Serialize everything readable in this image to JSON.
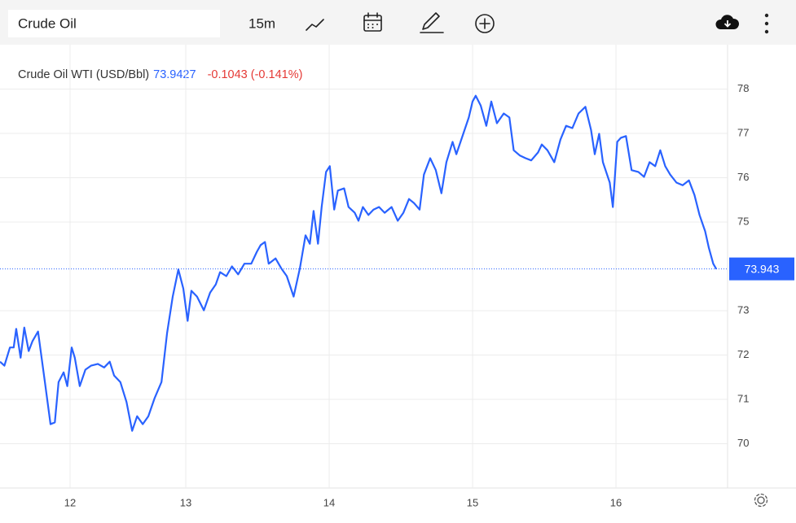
{
  "toolbar": {
    "symbol": "Crude Oil",
    "interval": "15m"
  },
  "chart_data": {
    "type": "line",
    "title": "Crude Oil WTI (USD/Bbl)",
    "price": "73.9427",
    "change": "-0.1043 (-0.141%)",
    "last_price": 73.943,
    "xlim": [
      0,
      116.7
    ],
    "ylim": [
      69.0,
      79.0
    ],
    "xticks": [
      {
        "value": 11.24,
        "label": "12"
      },
      {
        "value": 29.8,
        "label": "13"
      },
      {
        "value": 52.8,
        "label": "14"
      },
      {
        "value": 75.8,
        "label": "15"
      },
      {
        "value": 98.8,
        "label": "16"
      }
    ],
    "yticks": [
      70,
      71,
      72,
      73,
      75,
      76,
      77,
      78
    ],
    "grid": true,
    "series": [
      {
        "color": "#2962ff",
        "x": [
          0,
          0.7,
          1.6,
          2.2,
          2.6,
          3.3,
          3.9,
          4.6,
          5.2,
          6.1,
          7.2,
          8.1,
          8.8,
          9.4,
          10.2,
          10.8,
          11.5,
          12.0,
          12.8,
          13.7,
          14.6,
          15.7,
          16.7,
          17.6,
          18.3,
          19.3,
          20.3,
          21.2,
          22.0,
          22.9,
          23.8,
          24.8,
          25.9,
          26.8,
          27.7,
          28.6,
          29.4,
          30.1,
          30.7,
          31.6,
          32.7,
          33.7,
          34.6,
          35.3,
          36.3,
          37.2,
          38.2,
          39.2,
          40.3,
          41.2,
          41.8,
          42.5,
          43.1,
          44.2,
          45.1,
          46.0,
          47.1,
          48.1,
          49.0,
          49.7,
          50.3,
          51.0,
          51.6,
          52.3,
          52.9,
          53.6,
          54.2,
          55.2,
          55.9,
          56.9,
          57.5,
          58.2,
          59.1,
          59.9,
          60.8,
          61.7,
          62.8,
          63.8,
          64.7,
          65.6,
          66.4,
          67.3,
          68.0,
          69.0,
          69.9,
          70.8,
          71.6,
          72.6,
          73.2,
          74.3,
          75.2,
          75.8,
          76.3,
          77.1,
          78.0,
          78.8,
          79.7,
          80.8,
          81.7,
          82.4,
          83.4,
          84.3,
          85.2,
          86.3,
          86.9,
          87.8,
          88.9,
          89.9,
          90.8,
          91.8,
          92.8,
          93.9,
          94.8,
          95.4,
          96.1,
          96.7,
          97.8,
          98.3,
          99.0,
          99.6,
          100.4,
          101.3,
          102.4,
          103.3,
          104.2,
          105.1,
          105.9,
          106.7,
          107.5,
          108.5,
          109.5,
          110.5,
          111.4,
          112.2,
          113.1,
          113.7,
          114.4,
          114.9
        ],
        "values": [
          71.85,
          71.76,
          72.17,
          72.17,
          72.59,
          71.94,
          72.62,
          72.09,
          72.31,
          72.53,
          71.39,
          70.44,
          70.48,
          71.39,
          71.61,
          71.3,
          72.17,
          71.94,
          71.3,
          71.67,
          71.76,
          71.8,
          71.72,
          71.85,
          71.54,
          71.39,
          70.94,
          70.29,
          70.62,
          70.44,
          70.62,
          71.03,
          71.39,
          72.5,
          73.32,
          73.93,
          73.5,
          72.77,
          73.45,
          73.32,
          73.01,
          73.41,
          73.59,
          73.87,
          73.78,
          74.0,
          73.82,
          74.06,
          74.06,
          74.33,
          74.48,
          74.55,
          74.06,
          74.18,
          73.96,
          73.78,
          73.32,
          73.96,
          74.7,
          74.51,
          75.25,
          74.51,
          75.34,
          76.13,
          76.26,
          75.28,
          75.71,
          75.76,
          75.34,
          75.21,
          75.03,
          75.34,
          75.16,
          75.28,
          75.34,
          75.21,
          75.34,
          75.03,
          75.21,
          75.52,
          75.43,
          75.28,
          76.07,
          76.44,
          76.17,
          75.65,
          76.35,
          76.81,
          76.53,
          76.99,
          77.36,
          77.72,
          77.85,
          77.63,
          77.17,
          77.72,
          77.23,
          77.45,
          77.36,
          76.62,
          76.5,
          76.44,
          76.39,
          76.57,
          76.75,
          76.62,
          76.35,
          76.86,
          77.17,
          77.12,
          77.45,
          77.6,
          77.08,
          76.53,
          76.99,
          76.35,
          75.89,
          75.34,
          76.81,
          76.9,
          76.94,
          76.17,
          76.13,
          76.02,
          76.35,
          76.26,
          76.62,
          76.26,
          76.07,
          75.89,
          75.83,
          75.94,
          75.61,
          75.16,
          74.79,
          74.42,
          74.06,
          73.94
        ]
      }
    ]
  }
}
